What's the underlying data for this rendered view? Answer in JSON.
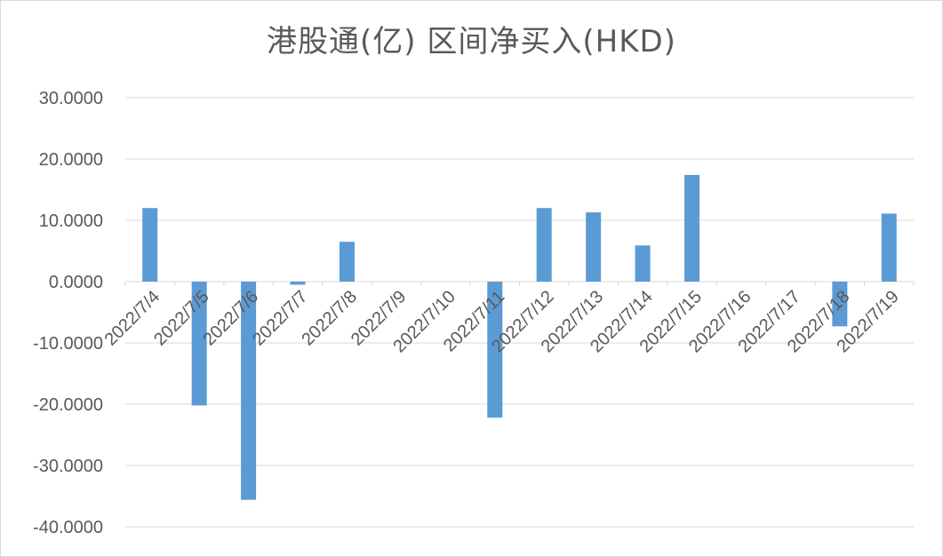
{
  "chart_data": {
    "type": "bar",
    "title": "港股通(亿) 区间净买入(HKD)",
    "categories": [
      "2022/7/4",
      "2022/7/5",
      "2022/7/6",
      "2022/7/7",
      "2022/7/8",
      "2022/7/9",
      "2022/7/10",
      "2022/7/11",
      "2022/7/12",
      "2022/7/13",
      "2022/7/14",
      "2022/7/15",
      "2022/7/16",
      "2022/7/17",
      "2022/7/18",
      "2022/7/19"
    ],
    "series": [
      {
        "values": [
          12.0,
          -20.2,
          -35.6,
          -0.5,
          6.5,
          0,
          0,
          -22.2,
          12.0,
          11.3,
          5.9,
          17.4,
          0,
          0,
          -7.3,
          11.1
        ]
      }
    ],
    "ylim": [
      -40,
      30
    ],
    "ytick_labels": [
      "30.0000",
      "20.0000",
      "10.0000",
      "0.0000",
      "-10.0000",
      "-20.0000",
      "-30.0000",
      "-40.0000"
    ],
    "grid": true,
    "bar_color": "#5b9bd5",
    "grid_color": "#d9d9d9"
  }
}
